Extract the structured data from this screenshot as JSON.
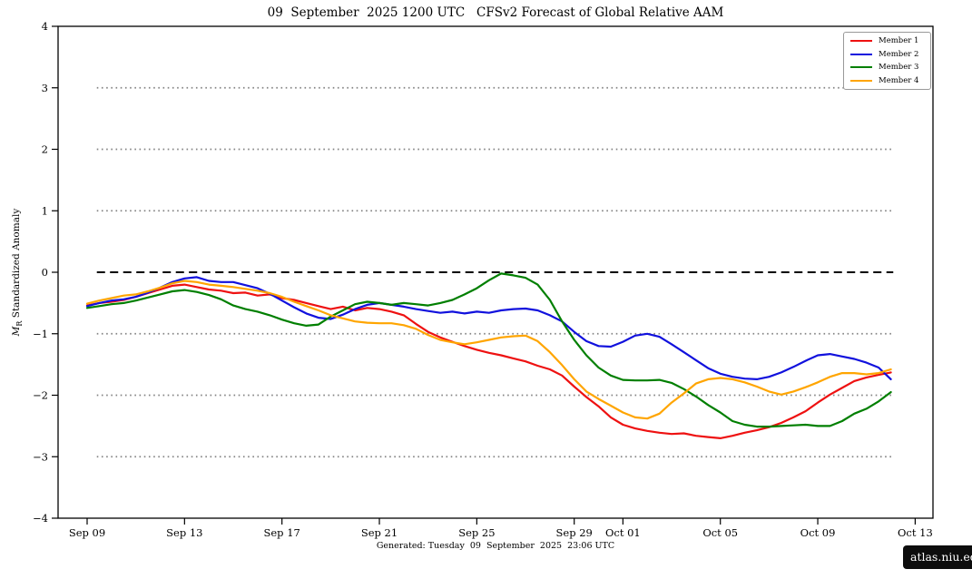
{
  "title": "09  September  2025 1200 UTC   CFSv2 Forecast of Global Relative AAM",
  "ylabel": {
    "m": "M",
    "sub": "R",
    "rest": " Standardized Anomaly"
  },
  "footer": {
    "generated": "Generated: Tuesday  09  September  2025  23:06 UTC",
    "badge": "atlas.niu.edu"
  },
  "legend": [
    {
      "label": "Member 1",
      "color": "#ee1111"
    },
    {
      "label": "Member 2",
      "color": "#1111dd"
    },
    {
      "label": "Member 3",
      "color": "#007f00"
    },
    {
      "label": "Member 4",
      "color": "#ffa500"
    }
  ],
  "chart_data": {
    "type": "line",
    "title": "09 September 2025 1200 UTC CFSv2 Forecast of Global Relative AAM",
    "xlabel": "",
    "ylabel": "M_R Standardized Anomaly",
    "x_unit": "days since Sep 09 2025",
    "x_start": 0,
    "x_step": 0.5,
    "xlim": [
      -1.2,
      34.7
    ],
    "ylim": [
      -4,
      4
    ],
    "grid": "dotted horizontal at ±1,±2,±3; dashed black at 0",
    "legend_position": "upper right",
    "x_ticks": [
      {
        "day": 0,
        "label": "Sep 09"
      },
      {
        "day": 4,
        "label": "Sep 13"
      },
      {
        "day": 8,
        "label": "Sep 17"
      },
      {
        "day": 12,
        "label": "Sep 21"
      },
      {
        "day": 16,
        "label": "Sep 25"
      },
      {
        "day": 20,
        "label": "Sep 29"
      },
      {
        "day": 22,
        "label": "Oct 01"
      },
      {
        "day": 26,
        "label": "Oct 05"
      },
      {
        "day": 30,
        "label": "Oct 09"
      },
      {
        "day": 34,
        "label": "Oct 13"
      }
    ],
    "y_ticks": [
      {
        "value": 4,
        "label": "4"
      },
      {
        "value": 3,
        "label": "3"
      },
      {
        "value": 2,
        "label": "2"
      },
      {
        "value": 1,
        "label": "1"
      },
      {
        "value": 0,
        "label": "0"
      },
      {
        "value": -1,
        "label": "−1"
      },
      {
        "value": -2,
        "label": "−2"
      },
      {
        "value": -3,
        "label": "−3"
      },
      {
        "value": -4,
        "label": "−4"
      }
    ],
    "reference_lines": {
      "zero_dashed": {
        "value": 0,
        "color": "#000000",
        "style": "dashed"
      },
      "dotted_values": [
        3,
        2,
        1,
        -1,
        -2,
        -3
      ],
      "dotted_color": "#848484",
      "span_days": [
        0.4,
        33.1
      ]
    },
    "series": [
      {
        "name": "Member 1",
        "color": "#ee1111",
        "values": [
          -0.54,
          -0.5,
          -0.48,
          -0.45,
          -0.4,
          -0.34,
          -0.28,
          -0.22,
          -0.2,
          -0.24,
          -0.28,
          -0.3,
          -0.34,
          -0.33,
          -0.38,
          -0.36,
          -0.42,
          -0.45,
          -0.5,
          -0.55,
          -0.6,
          -0.56,
          -0.62,
          -0.58,
          -0.6,
          -0.64,
          -0.7,
          -0.84,
          -0.97,
          -1.06,
          -1.13,
          -1.2,
          -1.26,
          -1.31,
          -1.35,
          -1.4,
          -1.45,
          -1.52,
          -1.58,
          -1.68,
          -1.86,
          -2.03,
          -2.18,
          -2.36,
          -2.48,
          -2.54,
          -2.58,
          -2.61,
          -2.63,
          -2.62,
          -2.66,
          -2.68,
          -2.7,
          -2.66,
          -2.61,
          -2.57,
          -2.52,
          -2.45,
          -2.36,
          -2.26,
          -2.12,
          -1.99,
          -1.88,
          -1.77,
          -1.71,
          -1.67,
          -1.63
        ]
      },
      {
        "name": "Member 2",
        "color": "#1111dd",
        "values": [
          -0.55,
          -0.5,
          -0.46,
          -0.44,
          -0.4,
          -0.33,
          -0.25,
          -0.16,
          -0.1,
          -0.08,
          -0.14,
          -0.16,
          -0.16,
          -0.21,
          -0.26,
          -0.35,
          -0.46,
          -0.57,
          -0.67,
          -0.74,
          -0.76,
          -0.69,
          -0.6,
          -0.53,
          -0.5,
          -0.53,
          -0.56,
          -0.6,
          -0.63,
          -0.66,
          -0.64,
          -0.67,
          -0.64,
          -0.66,
          -0.62,
          -0.6,
          -0.59,
          -0.62,
          -0.7,
          -0.8,
          -0.97,
          -1.12,
          -1.2,
          -1.21,
          -1.13,
          -1.03,
          -1.0,
          -1.05,
          -1.17,
          -1.3,
          -1.43,
          -1.56,
          -1.65,
          -1.7,
          -1.73,
          -1.74,
          -1.7,
          -1.63,
          -1.54,
          -1.44,
          -1.35,
          -1.33,
          -1.37,
          -1.41,
          -1.47,
          -1.55,
          -1.74
        ]
      },
      {
        "name": "Member 3",
        "color": "#007f00",
        "values": [
          -0.58,
          -0.55,
          -0.52,
          -0.5,
          -0.46,
          -0.41,
          -0.36,
          -0.31,
          -0.29,
          -0.32,
          -0.37,
          -0.44,
          -0.54,
          -0.6,
          -0.64,
          -0.7,
          -0.77,
          -0.83,
          -0.87,
          -0.85,
          -0.72,
          -0.62,
          -0.52,
          -0.48,
          -0.5,
          -0.53,
          -0.5,
          -0.52,
          -0.54,
          -0.5,
          -0.45,
          -0.36,
          -0.26,
          -0.13,
          -0.02,
          -0.05,
          -0.09,
          -0.2,
          -0.45,
          -0.8,
          -1.1,
          -1.35,
          -1.55,
          -1.68,
          -1.75,
          -1.76,
          -1.76,
          -1.75,
          -1.8,
          -1.9,
          -2.02,
          -2.16,
          -2.28,
          -2.42,
          -2.48,
          -2.51,
          -2.51,
          -2.5,
          -2.49,
          -2.48,
          -2.5,
          -2.5,
          -2.42,
          -2.3,
          -2.22,
          -2.1,
          -1.95
        ]
      },
      {
        "name": "Member 4",
        "color": "#ffa500",
        "values": [
          -0.51,
          -0.46,
          -0.42,
          -0.38,
          -0.36,
          -0.31,
          -0.25,
          -0.18,
          -0.14,
          -0.16,
          -0.2,
          -0.22,
          -0.24,
          -0.27,
          -0.3,
          -0.34,
          -0.4,
          -0.48,
          -0.55,
          -0.62,
          -0.7,
          -0.75,
          -0.8,
          -0.82,
          -0.83,
          -0.83,
          -0.86,
          -0.92,
          -1.02,
          -1.1,
          -1.14,
          -1.17,
          -1.14,
          -1.1,
          -1.06,
          -1.04,
          -1.03,
          -1.12,
          -1.3,
          -1.51,
          -1.74,
          -1.94,
          -2.06,
          -2.17,
          -2.28,
          -2.36,
          -2.38,
          -2.3,
          -2.12,
          -1.97,
          -1.81,
          -1.74,
          -1.72,
          -1.74,
          -1.79,
          -1.86,
          -1.94,
          -1.99,
          -1.94,
          -1.87,
          -1.79,
          -1.7,
          -1.64,
          -1.64,
          -1.66,
          -1.64,
          -1.58
        ]
      }
    ]
  }
}
